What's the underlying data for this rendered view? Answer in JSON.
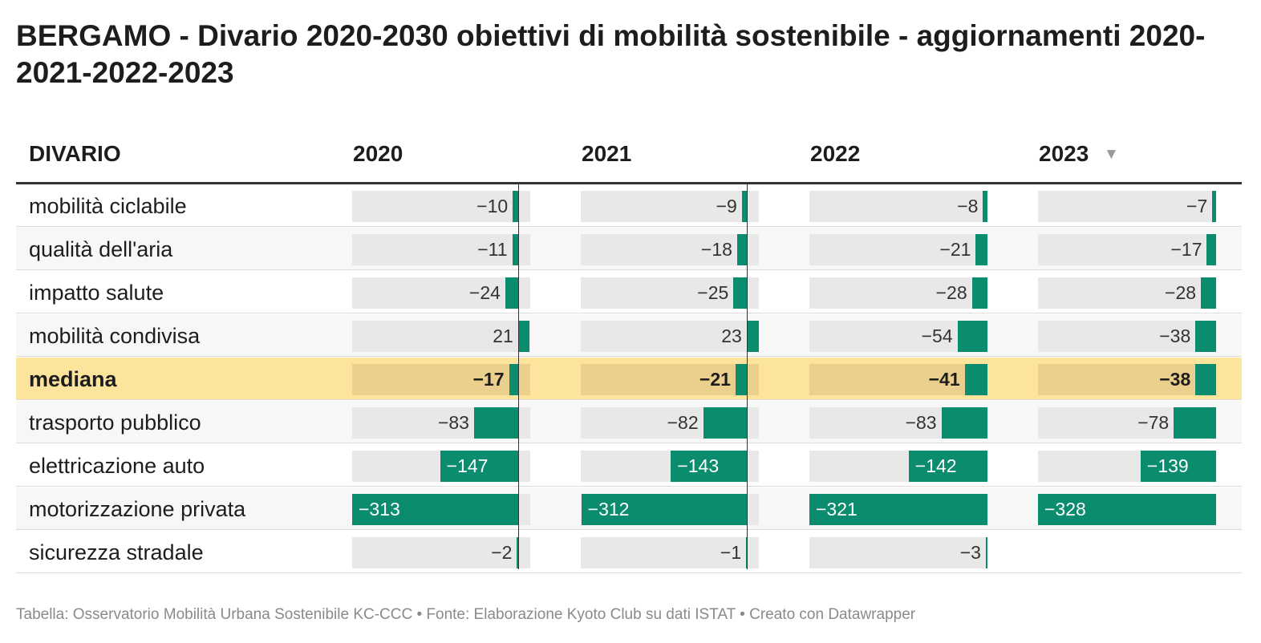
{
  "title": "BERGAMO - Divario 2020-2030 obiettivi di mobilità sostenibile - aggiornamenti 2020-2021-2022-2023",
  "footer": "Tabella: Osservatorio Mobilità Urbana Sostenibile KC-CCC • Fonte: Elaborazione Kyoto Club su dati ISTAT • Creato con Datawrapper",
  "colors": {
    "bar": "#0b8c6e",
    "median_row": "#fde49d",
    "bar_background": "#e8e8e8"
  },
  "icons": {
    "sort": "sort-descending-triangle"
  },
  "chart_data": {
    "type": "table",
    "columns": [
      {
        "label": "DIVARIO"
      },
      {
        "label": "2020",
        "domain": [
          -313,
          23
        ]
      },
      {
        "label": "2021",
        "domain": [
          -313,
          23
        ]
      },
      {
        "label": "2022",
        "domain": [
          -321,
          0
        ]
      },
      {
        "label": "2023",
        "domain": [
          -328,
          0
        ],
        "sort_glyph": "▼"
      }
    ],
    "rows": [
      {
        "label": "mobilità ciclabile",
        "values": [
          -10,
          -9,
          -8,
          -7
        ],
        "display": [
          "−10",
          "−9",
          "−8",
          "−7"
        ]
      },
      {
        "label": "qualità dell'aria",
        "values": [
          -11,
          -18,
          -21,
          -17
        ],
        "display": [
          "−11",
          "−18",
          "−21",
          "−17"
        ]
      },
      {
        "label": "impatto salute",
        "values": [
          -24,
          -25,
          -28,
          -28
        ],
        "display": [
          "−24",
          "−25",
          "−28",
          "−28"
        ]
      },
      {
        "label": "mobilità condivisa",
        "values": [
          21,
          23,
          -54,
          -38
        ],
        "display": [
          "21",
          "23",
          "−54",
          "−38"
        ]
      },
      {
        "label": "mediana",
        "highlight": true,
        "values": [
          -17,
          -21,
          -41,
          -38
        ],
        "display": [
          "−17",
          "−21",
          "−41",
          "−38"
        ]
      },
      {
        "label": "trasporto pubblico",
        "values": [
          -83,
          -82,
          -83,
          -78
        ],
        "display": [
          "−83",
          "−82",
          "−83",
          "−78"
        ]
      },
      {
        "label": "elettricazione auto",
        "values": [
          -147,
          -143,
          -142,
          -139
        ],
        "display": [
          "−147",
          "−143",
          "−142",
          "−139"
        ]
      },
      {
        "label": "motorizzazione privata",
        "values": [
          -313,
          -312,
          -321,
          -328
        ],
        "display": [
          "−313",
          "−312",
          "−321",
          "−328"
        ]
      },
      {
        "label": "sicurezza stradale",
        "values": [
          -2,
          -1,
          -3,
          null
        ],
        "display": [
          "−2",
          "−1",
          "−3",
          ""
        ]
      }
    ]
  }
}
